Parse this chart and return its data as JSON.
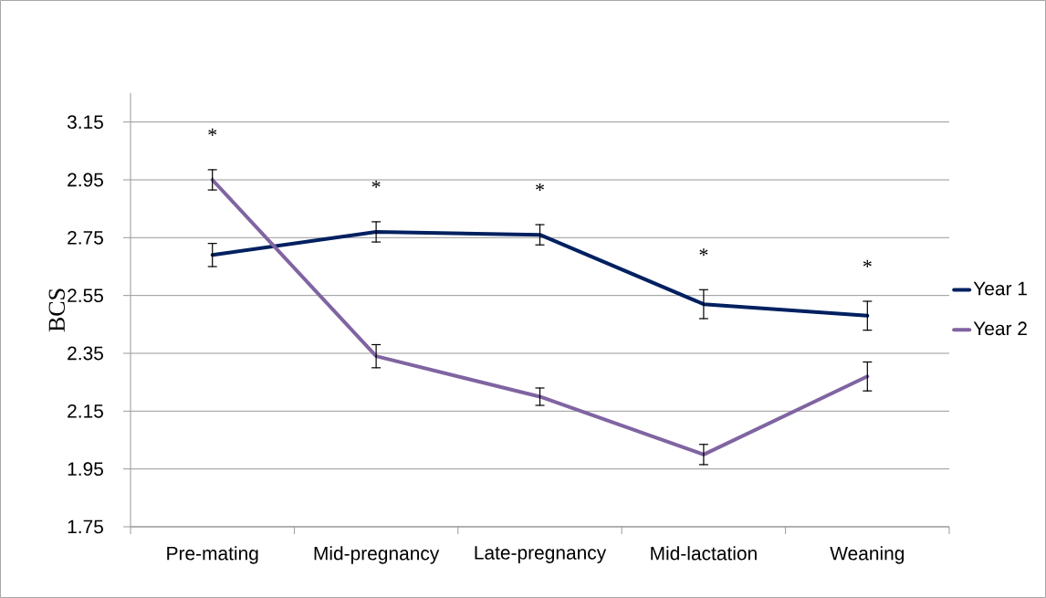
{
  "chart_data": {
    "type": "line",
    "ylabel": "BCS",
    "categories": [
      "Pre-mating",
      "Mid-pregnancy",
      "Late-pregnancy",
      "Mid-lactation",
      "Weaning"
    ],
    "series": [
      {
        "name": "Year 1",
        "color": "#002060",
        "values": [
          2.69,
          2.77,
          2.76,
          2.52,
          2.48
        ],
        "errors": [
          0.04,
          0.035,
          0.035,
          0.05,
          0.05
        ]
      },
      {
        "name": "Year 2",
        "color": "#8064a2",
        "values": [
          2.95,
          2.34,
          2.2,
          2.0,
          2.27
        ],
        "errors": [
          0.035,
          0.04,
          0.03,
          0.035,
          0.05
        ]
      }
    ],
    "ylim": [
      1.75,
      3.25
    ],
    "yticks": [
      1.75,
      1.95,
      2.15,
      2.35,
      2.55,
      2.75,
      2.95,
      3.15
    ],
    "grid": "y",
    "legend": "right",
    "marker": "none",
    "line_style": "solid",
    "annotations": [
      "*",
      "*",
      "*",
      "*",
      "*"
    ]
  }
}
